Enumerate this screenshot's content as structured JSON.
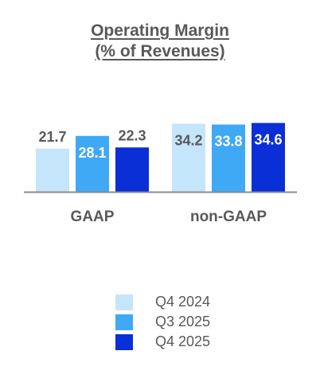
{
  "chart_data": {
    "type": "bar",
    "title_line1": "Operating Margin",
    "title_line2": "(% of Revenues)",
    "categories": [
      "GAAP",
      "non-GAAP"
    ],
    "series": [
      {
        "name": "Q4 2024",
        "values": [
          21.7,
          34.2
        ],
        "color": "#c5e5fb",
        "label_color": "#595959"
      },
      {
        "name": "Q3 2025",
        "values": [
          28.1,
          33.8
        ],
        "color": "#3fa9f5",
        "label_color": "#ffffff"
      },
      {
        "name": "Q4 2025",
        "values": [
          22.3,
          34.6
        ],
        "color": "#0a2fd6",
        "label_color": "#ffffff"
      }
    ],
    "label_positions": [
      [
        "above",
        "inside"
      ],
      [
        "inside",
        "inside"
      ],
      [
        "above",
        "inside"
      ]
    ],
    "ylim": [
      0,
      35
    ],
    "grid": false,
    "legend_position": "bottom"
  }
}
